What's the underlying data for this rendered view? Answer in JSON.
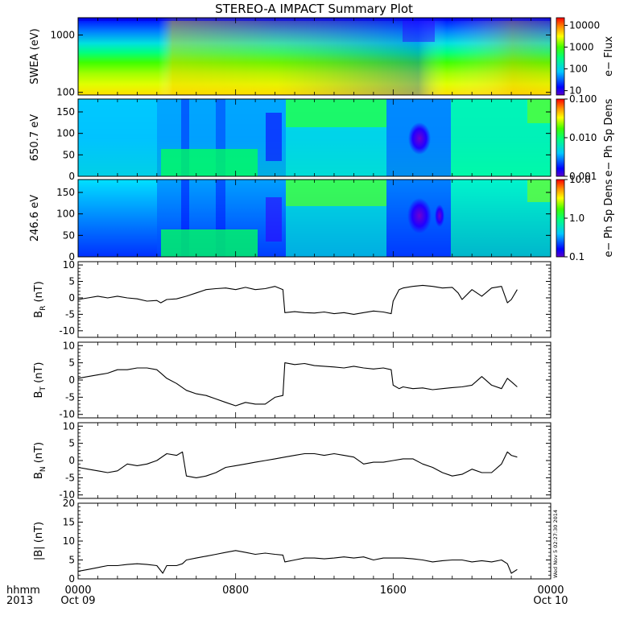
{
  "chart_data": {
    "type": "line",
    "title": "STEREO-A IMPACT Summary Plot",
    "stamp": "Wed Nov  5 02:27:30 2014",
    "time_axis": {
      "year_label": "2013",
      "unit_label": "hhmm",
      "range_hours": [
        0,
        24
      ],
      "ticks": [
        {
          "t": 0,
          "label": "0000",
          "date": "Oct 09"
        },
        {
          "t": 8,
          "label": "0800",
          "date": ""
        },
        {
          "t": 16,
          "label": "1600",
          "date": ""
        },
        {
          "t": 24,
          "label": "0000",
          "date": "Oct 10"
        }
      ]
    },
    "spectrograms": [
      {
        "ylabel": "SWEA (eV)",
        "yscale": "log",
        "ylim": [
          90,
          2000
        ],
        "ytick_labels": [
          "100",
          "1000"
        ],
        "ytick_values": [
          100,
          1000
        ],
        "colorbar_label": "e− Flux",
        "colorbar_ticks": [
          "10",
          "100",
          "1000",
          "10000"
        ],
        "colorbar_range_log": [
          0.8,
          4.35
        ]
      },
      {
        "ylabel": "650.7 eV",
        "yscale": "linear",
        "ylim": [
          0,
          180
        ],
        "ytick_labels": [
          "0",
          "50",
          "100",
          "150"
        ],
        "ytick_values": [
          0,
          50,
          100,
          150
        ],
        "colorbar_label": "e− Ph Sp Dens",
        "colorbar_ticks": [
          "0.001",
          "0.010",
          "0.100"
        ],
        "colorbar_range_log": [
          -3,
          -1
        ]
      },
      {
        "ylabel": "246.6 eV",
        "yscale": "linear",
        "ylim": [
          0,
          180
        ],
        "ytick_labels": [
          "0",
          "50",
          "100",
          "150"
        ],
        "ytick_values": [
          0,
          50,
          100,
          150
        ],
        "colorbar_label": "e− Ph Sp Dens",
        "colorbar_ticks": [
          "0.1",
          "1.0",
          "10.0"
        ],
        "colorbar_range_log": [
          -1,
          1
        ]
      }
    ],
    "line_panels": [
      {
        "ylabel": "B",
        "ysub": "R",
        "yunit": " (nT)",
        "ylim": [
          -12,
          11
        ],
        "ytick_labels": [
          "-10",
          "-5",
          "0",
          "5",
          "10"
        ],
        "ytick_values": [
          -10,
          -5,
          0,
          5,
          10
        ],
        "x": [
          0,
          0.5,
          1,
          1.5,
          2,
          2.5,
          3,
          3.5,
          4,
          4.2,
          4.5,
          5,
          5.5,
          6,
          6.5,
          7,
          7.5,
          8,
          8.5,
          9,
          9.5,
          10,
          10.4,
          10.5,
          11,
          11.5,
          12,
          12.5,
          13,
          13.5,
          14,
          14.5,
          15,
          15.5,
          15.9,
          16,
          16.3,
          16.5,
          17,
          17.5,
          18,
          18.5,
          19,
          19.3,
          19.5,
          20,
          20.5,
          21,
          21.5,
          21.8,
          22,
          22.3
        ],
        "y": [
          -0.5,
          0,
          0.5,
          0,
          0.5,
          0,
          -0.3,
          -1,
          -0.8,
          -1.5,
          -0.5,
          -0.3,
          0.5,
          1.5,
          2.5,
          2.8,
          3,
          2.5,
          3.2,
          2.5,
          2.8,
          3.5,
          2.5,
          -4.5,
          -4.2,
          -4.5,
          -4.6,
          -4.3,
          -4.8,
          -4.5,
          -5,
          -4.5,
          -4,
          -4.3,
          -4.8,
          -1,
          2.5,
          3,
          3.5,
          3.8,
          3.5,
          3,
          3.2,
          1.5,
          -0.5,
          2.5,
          0.5,
          3,
          3.5,
          -1.5,
          -0.5,
          2.5
        ]
      },
      {
        "ylabel": "B",
        "ysub": "T",
        "yunit": " (nT)",
        "ylim": [
          -11,
          11
        ],
        "ytick_labels": [
          "-10",
          "-5",
          "0",
          "5",
          "10"
        ],
        "ytick_values": [
          -10,
          -5,
          0,
          5,
          10
        ],
        "x": [
          0,
          0.5,
          1,
          1.5,
          2,
          2.5,
          3,
          3.5,
          4,
          4.3,
          4.5,
          5,
          5.5,
          6,
          6.5,
          7,
          7.5,
          8,
          8.5,
          9,
          9.5,
          10,
          10.4,
          10.5,
          11,
          11.5,
          12,
          12.5,
          13,
          13.5,
          14,
          14.5,
          15,
          15.5,
          15.9,
          16,
          16.3,
          16.5,
          17,
          17.5,
          18,
          18.5,
          19,
          19.5,
          20,
          20.5,
          21,
          21.5,
          21.8,
          22,
          22.3
        ],
        "y": [
          0.5,
          1,
          1.5,
          2,
          3,
          3,
          3.5,
          3.5,
          3,
          1.5,
          0.5,
          -1,
          -3,
          -4,
          -4.5,
          -5.5,
          -6.5,
          -7.5,
          -6.5,
          -7,
          -7,
          -5,
          -4.5,
          5,
          4.5,
          4.8,
          4.2,
          4,
          3.8,
          3.5,
          4,
          3.5,
          3.2,
          3.5,
          3,
          -1.5,
          -2.5,
          -2,
          -2.5,
          -2.3,
          -2.8,
          -2.5,
          -2.2,
          -2,
          -1.5,
          1,
          -1.5,
          -2.5,
          0.5,
          -0.5,
          -2
        ]
      },
      {
        "ylabel": "B",
        "ysub": "N",
        "yunit": " (nT)",
        "ylim": [
          -11,
          11
        ],
        "ytick_labels": [
          "-10",
          "-5",
          "0",
          "5",
          "10"
        ],
        "ytick_values": [
          -10,
          -5,
          0,
          5,
          10
        ],
        "x": [
          0,
          0.5,
          1,
          1.5,
          2,
          2.5,
          3,
          3.5,
          4,
          4.5,
          5,
          5.3,
          5.5,
          6,
          6.5,
          7,
          7.5,
          8,
          8.5,
          9,
          9.5,
          10,
          10.5,
          11,
          11.5,
          12,
          12.5,
          13,
          13.5,
          14,
          14.5,
          15,
          15.5,
          16,
          16.5,
          17,
          17.5,
          18,
          18.5,
          19,
          19.5,
          20,
          20.5,
          21,
          21.5,
          21.8,
          22,
          22.3
        ],
        "y": [
          -2,
          -2.5,
          -3,
          -3.5,
          -3,
          -1,
          -1.5,
          -1,
          0,
          2,
          1.5,
          2.5,
          -4.5,
          -5,
          -4.5,
          -3.5,
          -2,
          -1.5,
          -1,
          -0.5,
          0,
          0.5,
          1,
          1.5,
          2,
          2,
          1.5,
          2,
          1.5,
          1,
          -1,
          -0.5,
          -0.5,
          0,
          0.5,
          0.5,
          -1,
          -2,
          -3.5,
          -4.5,
          -4,
          -2.5,
          -3.5,
          -3.5,
          -1,
          2.5,
          1.5,
          1
        ]
      },
      {
        "ylabel": "|B| (nT)",
        "ysub": "",
        "yunit": "",
        "ylim": [
          0,
          20
        ],
        "ytick_labels": [
          "0",
          "5",
          "10",
          "15",
          "20"
        ],
        "ytick_values": [
          0,
          5,
          10,
          15,
          20
        ],
        "x": [
          0,
          0.5,
          1,
          1.5,
          2,
          2.5,
          3,
          3.5,
          4,
          4.3,
          4.5,
          5,
          5.3,
          5.5,
          6,
          6.5,
          7,
          7.5,
          8,
          8.5,
          9,
          9.5,
          10,
          10.4,
          10.5,
          11,
          11.5,
          12,
          12.5,
          13,
          13.5,
          14,
          14.5,
          15,
          15.5,
          16,
          16.5,
          17,
          17.5,
          18,
          18.5,
          19,
          19.5,
          20,
          20.5,
          21,
          21.5,
          21.8,
          22,
          22.3
        ],
        "y": [
          2,
          2.5,
          3,
          3.5,
          3.5,
          3.8,
          4,
          3.8,
          3.5,
          1.5,
          3.5,
          3.5,
          4,
          5,
          5.5,
          6,
          6.5,
          7,
          7.5,
          7,
          6.5,
          6.8,
          6.5,
          6.3,
          4.5,
          5,
          5.5,
          5.5,
          5.3,
          5.5,
          5.8,
          5.5,
          5.8,
          5,
          5.5,
          5.5,
          5.5,
          5.3,
          5,
          4.5,
          4.8,
          5,
          5,
          4.5,
          4.8,
          4.5,
          5,
          4,
          1.5,
          2.5
        ]
      }
    ]
  }
}
